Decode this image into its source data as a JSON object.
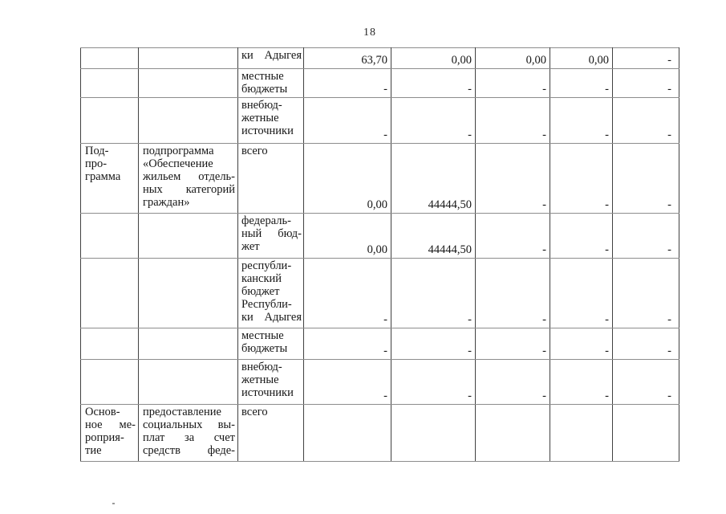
{
  "page": {
    "number": "18"
  },
  "table": {
    "rows": [
      {
        "program": "",
        "description": "",
        "source": "ки Адыгея",
        "values": [
          "63,70",
          "0,00",
          "0,00",
          "0,00",
          "-"
        ]
      },
      {
        "program": "",
        "description": "",
        "source": "местные\nбюджеты",
        "values": [
          "-",
          "-",
          "-",
          "-",
          "-"
        ]
      },
      {
        "program": "",
        "description": "",
        "source": "внебюд-\nжетные\nисточники",
        "values": [
          "-",
          "-",
          "-",
          "-",
          "-"
        ]
      },
      {
        "program": "Под-\nпро-\nграмма",
        "description": "подпрограмма\n«Обеспечение\nжильем отдель-\nных категорий\nграждан»",
        "source": "всего",
        "values": [
          "0,00",
          "44444,50",
          "-",
          "-",
          "-"
        ]
      },
      {
        "program": "",
        "description": "",
        "source": "федераль-\nный бюд-\nжет",
        "values": [
          "0,00",
          "44444,50",
          "-",
          "-",
          "-"
        ]
      },
      {
        "program": "",
        "description": "",
        "source": "республи-\nканский\nбюджет\nРеспубли-\nки Адыгея",
        "values": [
          "-",
          "-",
          "-",
          "-",
          "-"
        ]
      },
      {
        "program": "",
        "description": "",
        "source": "местные\nбюджеты",
        "values": [
          "-",
          "-",
          "-",
          "-",
          "-"
        ]
      },
      {
        "program": "",
        "description": "",
        "source": "внебюд-\nжетные\nисточники",
        "values": [
          "-",
          "-",
          "-",
          "-",
          "-"
        ]
      },
      {
        "program": "Основ-\nное ме-\nроприя-\nтие",
        "description": "предоставление\nсоциальных вы-\nплат за счет\nсредств феде-",
        "source": "всего",
        "values": [
          "",
          "",
          "",
          "",
          ""
        ]
      }
    ]
  }
}
